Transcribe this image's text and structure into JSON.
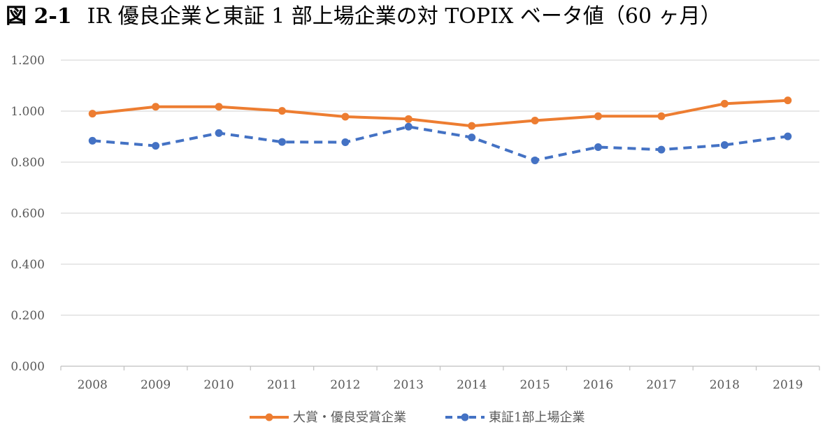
{
  "title": {
    "figure_no": "図 2-1",
    "text": "IR 優良企業と東証 1 部上場企業の対 TOPIX ベータ値（60 ヶ月）"
  },
  "chart_data": {
    "type": "line",
    "title": "IR 優良企業と東証 1 部上場企業の対 TOPIX ベータ値（60 ヶ月）",
    "xlabel": "",
    "ylabel": "",
    "categories": [
      "2008",
      "2009",
      "2010",
      "2011",
      "2012",
      "2013",
      "2014",
      "2015",
      "2016",
      "2017",
      "2018",
      "2019"
    ],
    "ylim": [
      0,
      1.2
    ],
    "yticks": [
      "0.000",
      "0.200",
      "0.400",
      "0.600",
      "0.800",
      "1.000",
      "1.200"
    ],
    "ytick_values": [
      0,
      0.2,
      0.4,
      0.6,
      0.8,
      1.0,
      1.2
    ],
    "grid": true,
    "legend_position": "bottom",
    "series": [
      {
        "name": "大賞・優良受賞企業",
        "color": "#ED7D31",
        "style": "solid",
        "values": [
          0.99,
          1.017,
          1.017,
          1.001,
          0.978,
          0.969,
          0.942,
          0.963,
          0.98,
          0.98,
          1.029,
          1.042
        ]
      },
      {
        "name": "東証1部上場企業",
        "color": "#4472C4",
        "style": "dashed",
        "values": [
          0.884,
          0.864,
          0.914,
          0.879,
          0.878,
          0.939,
          0.897,
          0.807,
          0.859,
          0.849,
          0.867,
          0.901
        ]
      }
    ]
  }
}
